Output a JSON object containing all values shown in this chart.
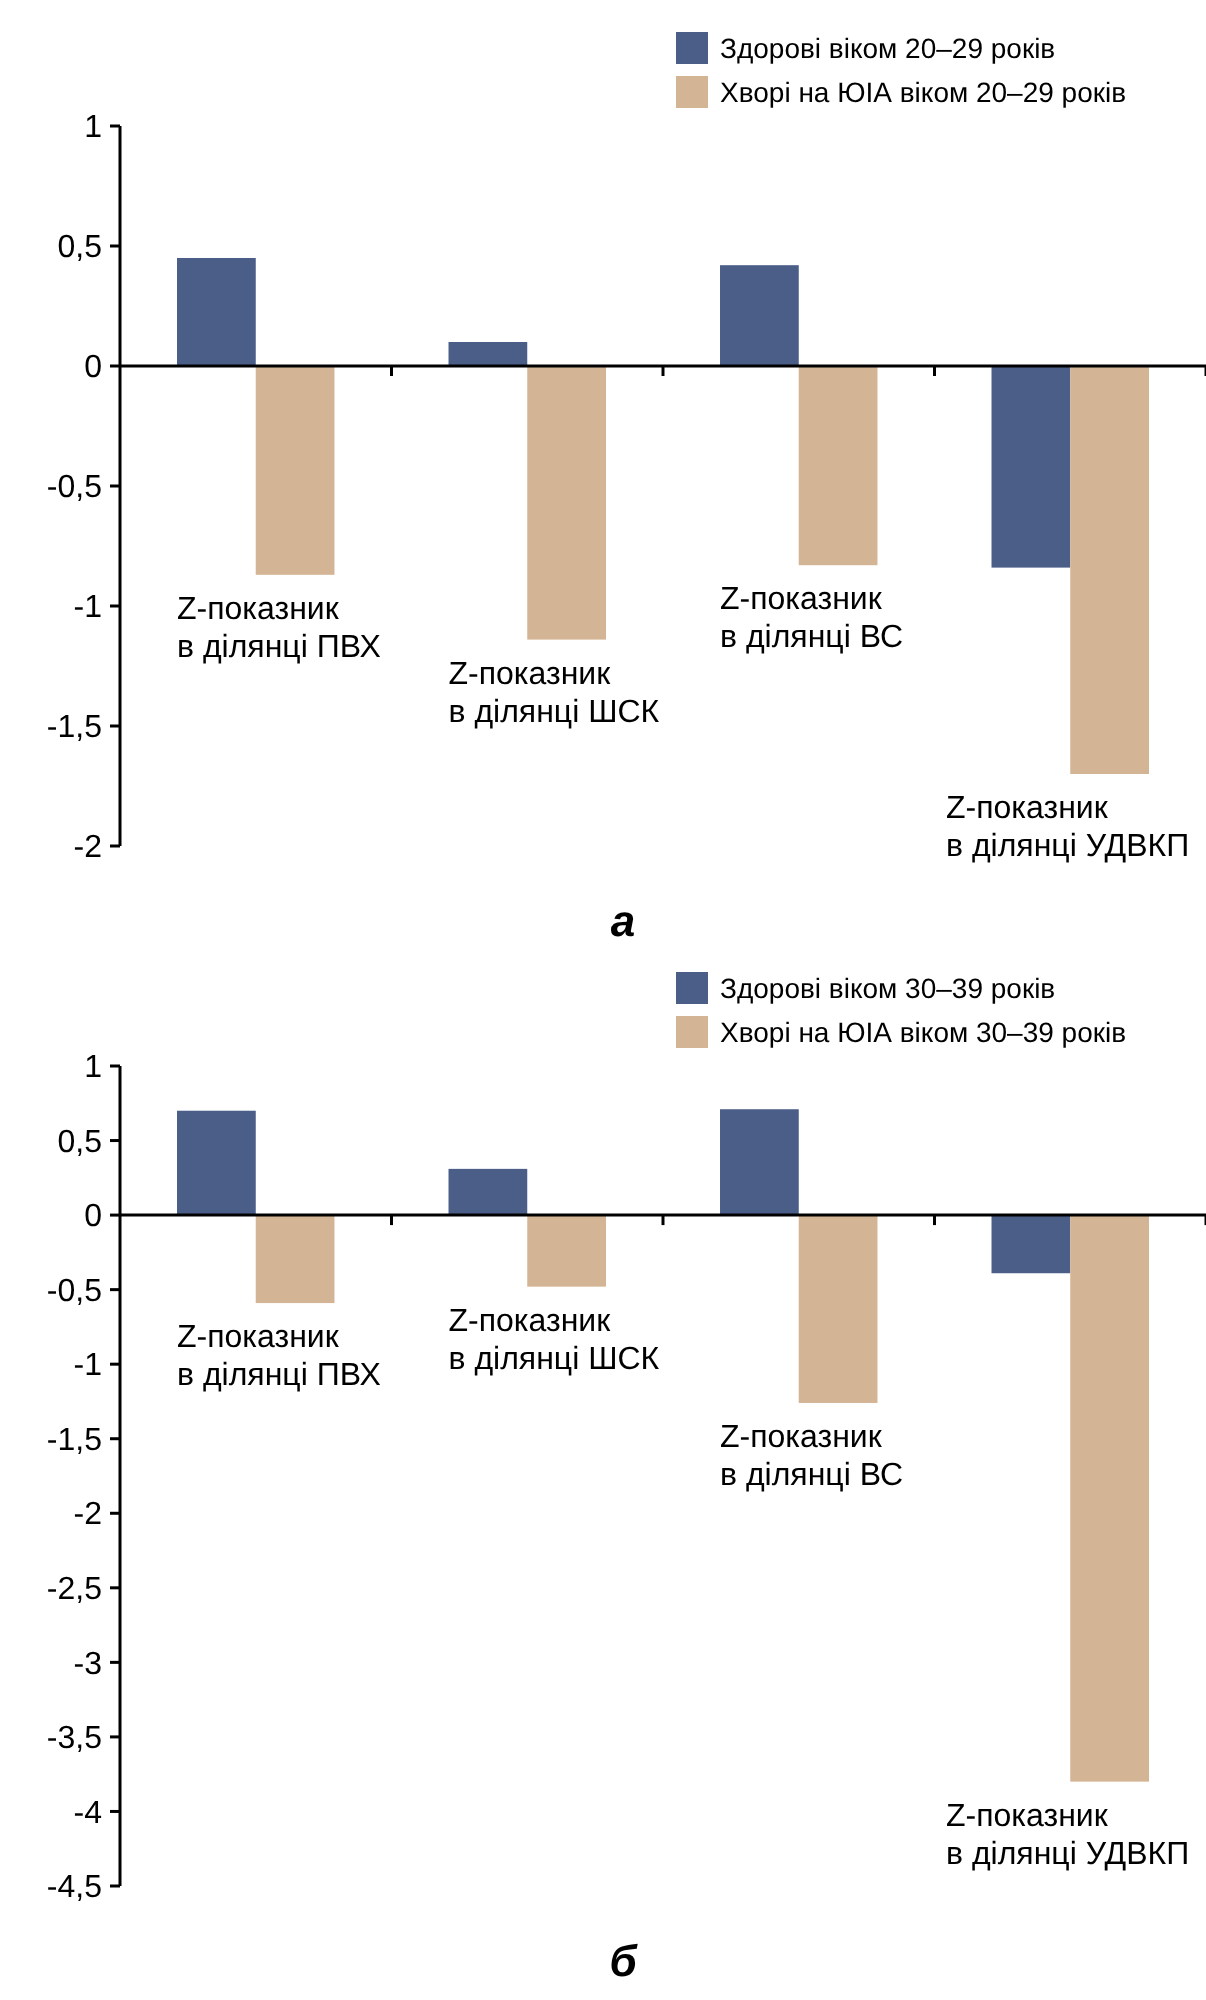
{
  "chart_data": [
    {
      "type": "bar",
      "title": "а",
      "categories": [
        "Z-показник в ділянці ПВХ",
        "Z-показник в ділянці ШСК",
        "Z-показник в ділянці ВС",
        "Z-показник в ділянці УДВКП"
      ],
      "series": [
        {
          "name": "Здорові віком 20–29 років",
          "color": "#4a5e88",
          "values": [
            0.45,
            0.1,
            0.42,
            -0.84
          ]
        },
        {
          "name": "Хворі на ЮІА віком 20–29 років",
          "color": "#d3b595",
          "values": [
            -0.87,
            -1.14,
            -0.83,
            -1.7
          ]
        }
      ],
      "ylim": [
        -2,
        1
      ],
      "yticks": [
        {
          "value": 1,
          "label": "1"
        },
        {
          "value": 0.5,
          "label": "0,5"
        },
        {
          "value": 0,
          "label": "0"
        },
        {
          "value": -0.5,
          "label": "-0,5"
        },
        {
          "value": -1,
          "label": "-1"
        },
        {
          "value": -1.5,
          "label": "-1,5"
        },
        {
          "value": -2,
          "label": "-2"
        }
      ],
      "legend": "top right"
    },
    {
      "type": "bar",
      "title": "б",
      "categories": [
        "Z-показник в ділянці ПВХ",
        "Z-показник в ділянці ШСК",
        "Z-показник в ділянці ВС",
        "Z-показник в ділянці УДВКП"
      ],
      "series": [
        {
          "name": "Здорові віком 30–39 років",
          "color": "#4a5e88",
          "values": [
            0.7,
            0.31,
            0.71,
            -0.39
          ]
        },
        {
          "name": "Хворі на ЮІА віком 30–39 років",
          "color": "#d3b595",
          "values": [
            -0.59,
            -0.48,
            -1.26,
            -3.8
          ]
        }
      ],
      "ylim": [
        -4.5,
        1
      ],
      "yticks": [
        {
          "value": 1,
          "label": "1"
        },
        {
          "value": 0.5,
          "label": "0,5"
        },
        {
          "value": 0,
          "label": "0"
        },
        {
          "value": -0.5,
          "label": "-0,5"
        },
        {
          "value": -1,
          "label": "-1"
        },
        {
          "value": -1.5,
          "label": "-1,5"
        },
        {
          "value": -2,
          "label": "-2"
        },
        {
          "value": -2.5,
          "label": "-2,5"
        },
        {
          "value": -3,
          "label": "-3"
        },
        {
          "value": -3.5,
          "label": "-3,5"
        },
        {
          "value": -4,
          "label": "-4"
        },
        {
          "value": -4.5,
          "label": "-4,5"
        }
      ],
      "legend": "top right"
    }
  ]
}
